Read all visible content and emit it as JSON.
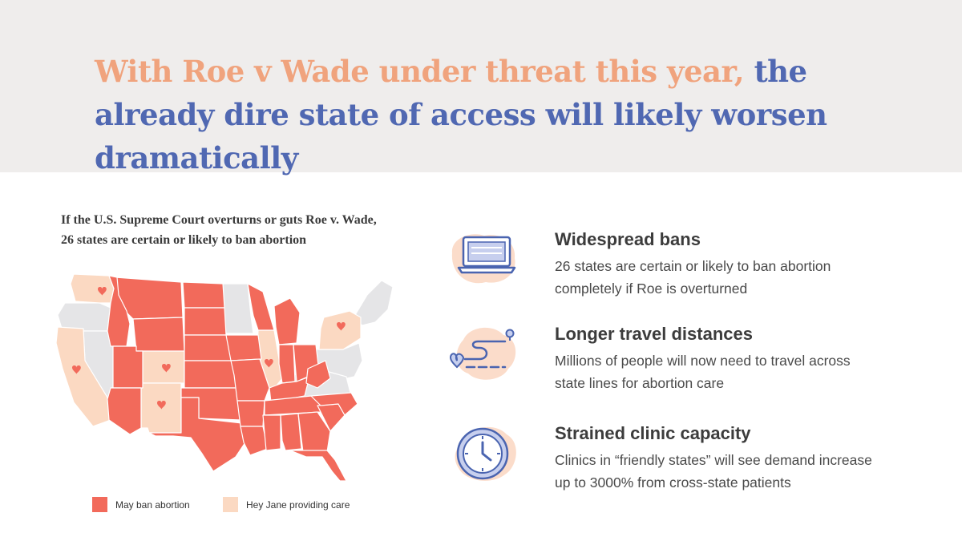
{
  "headline": {
    "accent_text": "With Roe v Wade under threat this year,",
    "primary_text": " the already dire state of access will likely worsen dramatically"
  },
  "map": {
    "caption_line1": "If the U.S. Supreme Court overturns or guts Roe v. Wade,",
    "caption_line2": "26 states are certain or likely to ban abortion",
    "legend": {
      "ban_label": "May ban abortion",
      "care_label": "Hey Jane providing care"
    },
    "colors": {
      "ban": "#f26a5b",
      "care": "#fbd9c2",
      "neutral": "#e5e5e7",
      "heart": "#f26a5b"
    }
  },
  "features": [
    {
      "icon": "laptop-icon",
      "title": "Widespread bans",
      "desc_line1": "26 states are certain or likely to ban abortion",
      "desc_line2": "completely if Roe is overturned"
    },
    {
      "icon": "route-icon",
      "title": "Longer travel distances",
      "desc_line1": "Millions of people will now need to travel across",
      "desc_line2": "state lines for abortion care"
    },
    {
      "icon": "clock-icon",
      "title": "Strained clinic capacity",
      "desc_line1": "Clinics in “friendly states” will see demand increase",
      "desc_line2": "up to 3000% from cross-state patients"
    }
  ],
  "colors": {
    "accent": "#f0a37d",
    "primary": "#5068b2",
    "header_bg": "#efedec",
    "icon_blob": "#fbdcca",
    "icon_stroke": "#4a64b0"
  }
}
